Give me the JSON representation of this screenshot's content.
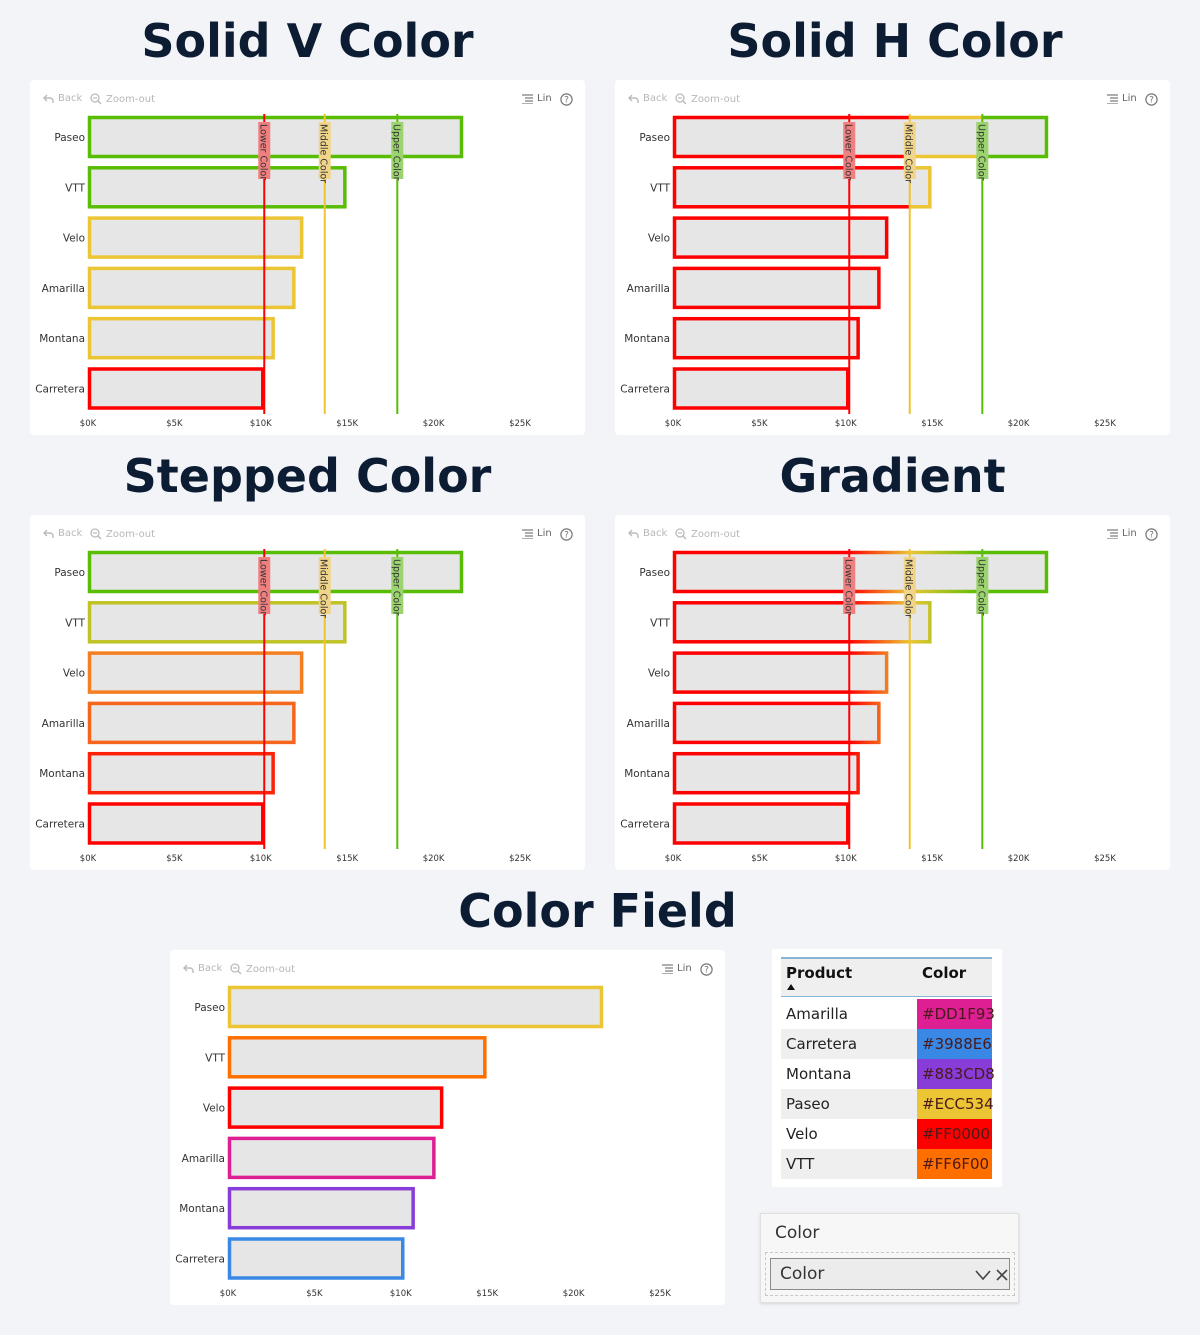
{
  "toolbar": {
    "back": "Back",
    "zoom_out": "Zoom-out",
    "scale": "Lin"
  },
  "sections": [
    {
      "title": "Solid V Color"
    },
    {
      "title": "Solid H Color"
    },
    {
      "title": "Stepped Color"
    },
    {
      "title": "Gradient"
    },
    {
      "title": "Color Field"
    }
  ],
  "colors": {
    "lower": "#FF0000",
    "middle": "#ECC534",
    "upper": "#59BD05",
    "bar_fill": "#E6E6E6"
  },
  "reference_lines": [
    {
      "label": "Lower Color",
      "value": 10200
    },
    {
      "label": "Middle Color",
      "value": 13700
    },
    {
      "label": "Upper Color",
      "value": 17900
    }
  ],
  "chart_data": [
    {
      "type": "bar",
      "orientation": "horizontal",
      "title": "Solid V Color",
      "color_mode": "solid-vertical",
      "categories": [
        "Paseo",
        "VTT",
        "Velo",
        "Amarilla",
        "Montana",
        "Carretera"
      ],
      "values": [
        21700,
        14950,
        12450,
        12000,
        10800,
        10200
      ],
      "x_ticks": [
        "$0K",
        "$5K",
        "$10K",
        "$15K",
        "$20K",
        "$25K"
      ],
      "xlim": [
        0,
        25000
      ]
    },
    {
      "type": "bar",
      "orientation": "horizontal",
      "title": "Solid H Color",
      "color_mode": "solid-horizontal",
      "categories": [
        "Paseo",
        "VTT",
        "Velo",
        "Amarilla",
        "Montana",
        "Carretera"
      ],
      "values": [
        21700,
        14950,
        12450,
        12000,
        10800,
        10200
      ],
      "x_ticks": [
        "$0K",
        "$5K",
        "$10K",
        "$15K",
        "$20K",
        "$25K"
      ],
      "xlim": [
        0,
        25000
      ]
    },
    {
      "type": "bar",
      "orientation": "horizontal",
      "title": "Stepped Color",
      "color_mode": "stepped",
      "categories": [
        "Paseo",
        "VTT",
        "Velo",
        "Amarilla",
        "Montana",
        "Carretera"
      ],
      "values": [
        21700,
        14950,
        12450,
        12000,
        10800,
        10200
      ],
      "x_ticks": [
        "$0K",
        "$5K",
        "$10K",
        "$15K",
        "$20K",
        "$25K"
      ],
      "xlim": [
        0,
        25000
      ]
    },
    {
      "type": "bar",
      "orientation": "horizontal",
      "title": "Gradient",
      "color_mode": "gradient",
      "categories": [
        "Paseo",
        "VTT",
        "Velo",
        "Amarilla",
        "Montana",
        "Carretera"
      ],
      "values": [
        21700,
        14950,
        12450,
        12000,
        10800,
        10200
      ],
      "x_ticks": [
        "$0K",
        "$5K",
        "$10K",
        "$15K",
        "$20K",
        "$25K"
      ],
      "xlim": [
        0,
        25000
      ]
    },
    {
      "type": "bar",
      "orientation": "horizontal",
      "title": "Color Field",
      "color_mode": "field",
      "categories": [
        "Paseo",
        "VTT",
        "Velo",
        "Amarilla",
        "Montana",
        "Carretera"
      ],
      "values": [
        21700,
        14950,
        12450,
        12000,
        10800,
        10200
      ],
      "x_ticks": [
        "$0K",
        "$5K",
        "$10K",
        "$15K",
        "$20K",
        "$25K"
      ],
      "xlim": [
        0,
        25000
      ]
    },
    {
      "type": "table",
      "columns": [
        "Product",
        "Color"
      ],
      "rows": [
        [
          "Amarilla",
          "#DD1F93"
        ],
        [
          "Carretera",
          "#3988E6"
        ],
        [
          "Montana",
          "#883CD8"
        ],
        [
          "Paseo",
          "#ECC534"
        ],
        [
          "Velo",
          "#FF0000"
        ],
        [
          "VTT",
          "#FF6F00"
        ]
      ]
    }
  ],
  "slicer": {
    "title": "Color",
    "value": "Color"
  }
}
